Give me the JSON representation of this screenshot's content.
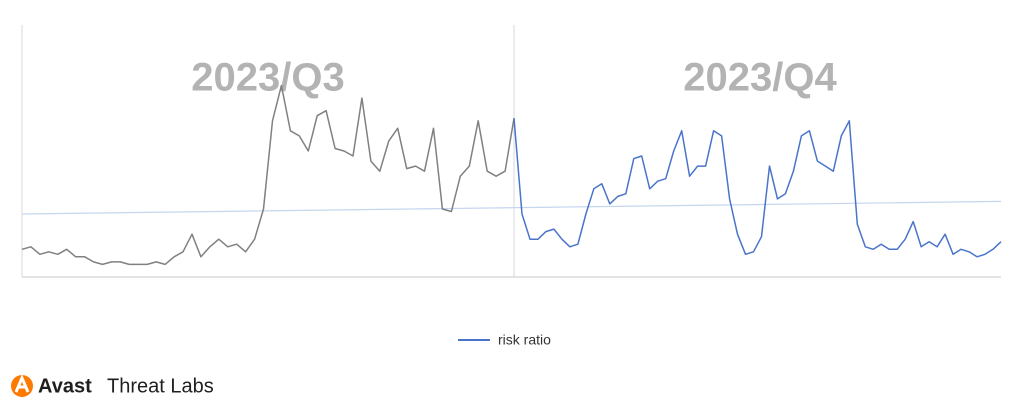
{
  "chart_data": {
    "type": "line",
    "annotations": [
      "2023/Q3",
      "2023/Q4"
    ],
    "ylim": [
      0,
      100
    ],
    "series": [
      {
        "color": "#808080",
        "values": [
          11,
          12,
          9,
          10,
          9,
          11,
          8,
          8,
          6,
          5,
          6,
          6,
          5,
          5,
          5,
          6,
          5,
          8,
          10,
          17,
          8,
          12,
          15,
          12,
          13,
          10,
          15,
          27,
          62,
          76,
          58,
          56,
          50,
          64,
          66,
          51,
          50,
          48,
          71,
          46,
          42,
          54,
          59,
          43,
          44,
          42,
          59,
          27,
          26,
          40,
          44,
          62,
          42,
          40,
          42,
          63
        ]
      },
      {
        "name": "risk ratio",
        "color": "#4a74c9",
        "values": [
          63,
          25,
          15,
          15,
          18,
          19,
          15,
          12,
          13,
          25,
          35,
          37,
          29,
          32,
          33,
          47,
          48,
          35,
          38,
          39,
          50,
          58,
          40,
          44,
          44,
          58,
          56,
          31,
          17,
          9,
          10,
          16,
          44,
          31,
          33,
          42,
          56,
          58,
          46,
          44,
          42,
          56,
          62,
          21,
          12,
          11,
          13,
          11,
          11,
          15,
          22,
          12,
          14,
          12,
          17,
          9,
          11,
          10,
          8,
          9,
          11,
          14
        ]
      }
    ],
    "trendline": {
      "color": "#c6d6f0",
      "values": [
        25,
        30
      ]
    }
  },
  "branding": {
    "brand": "Avast",
    "product": "Threat Labs"
  }
}
